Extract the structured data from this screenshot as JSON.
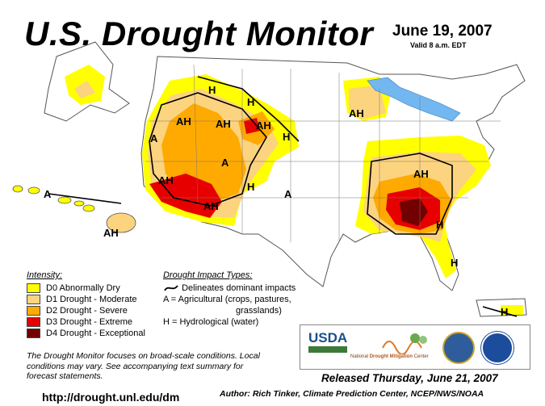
{
  "header": {
    "title": "U.S. Drought Monitor",
    "date": "June 19, 2007",
    "valid": "Valid 8 a.m. EDT"
  },
  "legend": {
    "heading": "Intensity:",
    "items": [
      {
        "label": "D0 Abnormally Dry",
        "color": "#ffff00"
      },
      {
        "label": "D1 Drought - Moderate",
        "color": "#fcd37f"
      },
      {
        "label": "D2 Drought - Severe",
        "color": "#ffaa00"
      },
      {
        "label": "D3 Drought - Extreme",
        "color": "#e60000"
      },
      {
        "label": "D4 Drought - Exceptional",
        "color": "#730000"
      }
    ]
  },
  "impact": {
    "heading": "Drought Impact Types:",
    "line": "Delineates dominant impacts",
    "agricultural": "A = Agricultural (crops, pastures,",
    "agricultural_2": "grasslands)",
    "hydrological": "H = Hydrological (water)"
  },
  "map_labels": [
    "AH",
    "A",
    "AH",
    "H",
    "H",
    "H",
    "AH",
    "A",
    "AH",
    "AH",
    "H",
    "A",
    "AH",
    "AH",
    "H",
    "H",
    "A",
    "AH",
    "H"
  ],
  "note": "The Drought Monitor focuses on broad-scale conditions. Local conditions may vary. See accompanying text summary for forecast statements.",
  "url": "http://drought.unl.edu/dm",
  "released": "Released Thursday, June 21, 2007",
  "author": "Author: Rich Tinker, Climate Prediction Center, NCEP/NWS/NOAA",
  "logos": {
    "usda": "USDA",
    "ndmc_prefix": "National",
    "ndmc_name": "Drought Mitigation",
    "ndmc_suffix": "Center"
  }
}
